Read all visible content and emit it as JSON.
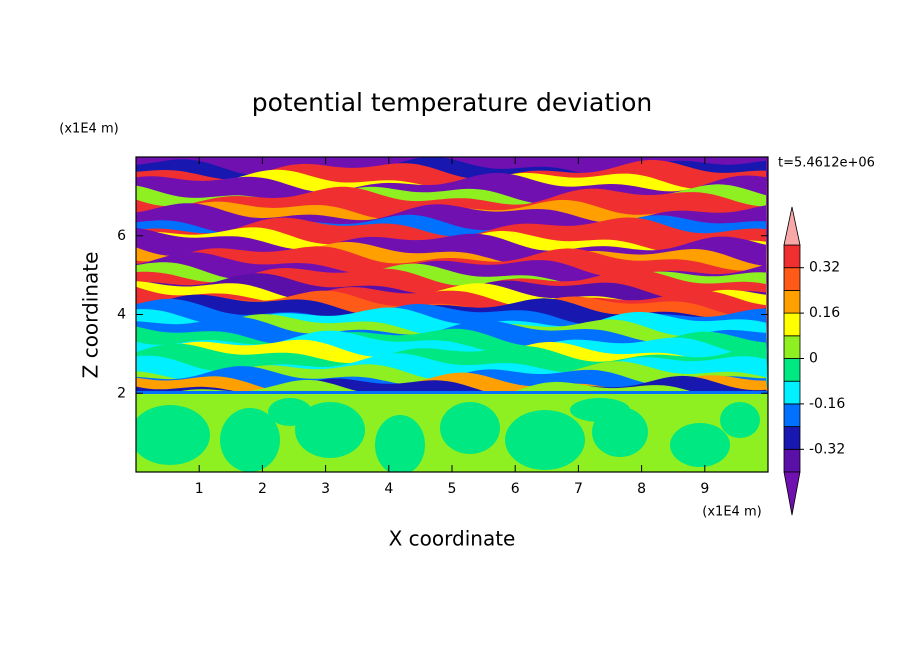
{
  "chart_data": {
    "type": "contour",
    "title": "potential temperature deviation",
    "xlabel": "X coordinate",
    "ylabel": "Z coordinate",
    "x_unit": "(x1E4 m)",
    "y_unit": "(x1E4 m)",
    "annotation": "t=5.4612e+06",
    "xlim": [
      0,
      10
    ],
    "ylim": [
      0,
      8
    ],
    "xticks": [
      1,
      2,
      3,
      4,
      5,
      6,
      7,
      8,
      9
    ],
    "yticks": [
      2,
      4,
      6
    ],
    "colorbar": {
      "levels": [
        -0.4,
        -0.32,
        -0.24,
        -0.16,
        -0.08,
        0,
        0.08,
        0.16,
        0.24,
        0.32,
        0.4
      ],
      "colors": [
        "#5a10a8",
        "#1818b0",
        "#0070ff",
        "#00f0ff",
        "#00e882",
        "#8ef020",
        "#ffff00",
        "#ffa000",
        "#ff5a18",
        "#f03030"
      ],
      "under_color": "#7010b0",
      "over_color": "#f8a8a8",
      "ticks": [
        -0.32,
        -0.16,
        0,
        0.16,
        0.32
      ]
    }
  }
}
